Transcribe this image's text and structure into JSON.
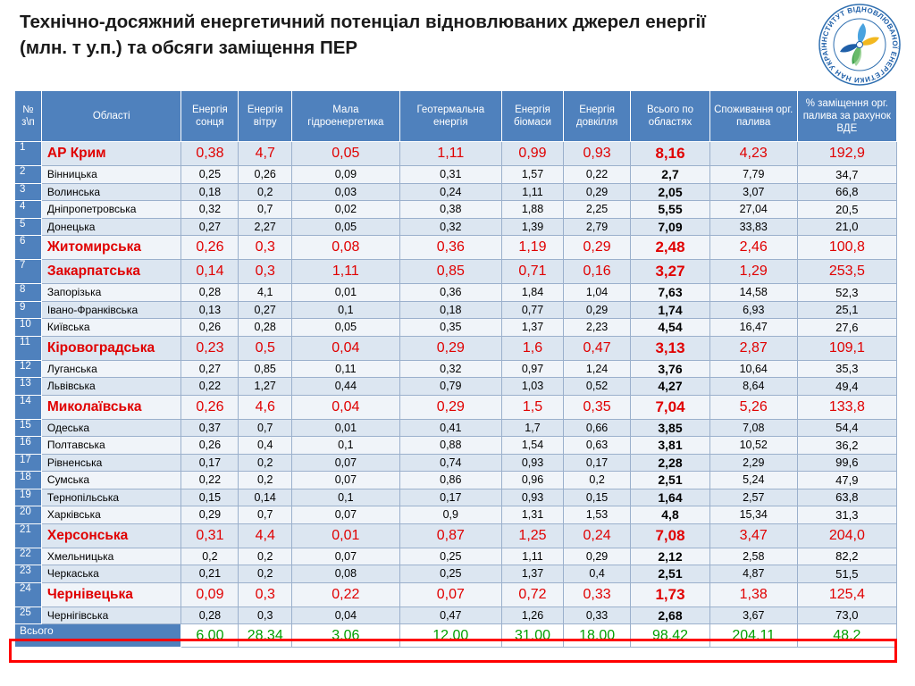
{
  "title": "Технічно-досяжний енергетичний потенціал відновлюваних джерел енергії (млн. т у.п.) та обсяги заміщення ПЕР",
  "logo": {
    "text": "ІНСТИТУТ ВІДНОВЛЮВАНОЇ ЕНЕРГЕТИКИ НАН УКРАЇНИ"
  },
  "table": {
    "headers": [
      "№ з\\п",
      "Області",
      "Енергія сонця",
      "Енергія вітру",
      "Мала гідроенергетика",
      "Геотермальна енергія",
      "Енергія біомаси",
      "Енергія довкілля",
      "Всього по областях",
      "Споживання орг. палива",
      "% заміщення орг. палива за рахунок ВДЕ"
    ],
    "rows": [
      {
        "n": "1",
        "name": "АР Крим",
        "highlight": true,
        "v": [
          "0,38",
          "4,7",
          "0,05",
          "1,11",
          "0,99",
          "0,93",
          "8,16",
          "4,23",
          "192,9"
        ]
      },
      {
        "n": "2",
        "name": "Вінницька",
        "highlight": false,
        "v": [
          "0,25",
          "0,26",
          "0,09",
          "0,31",
          "1,57",
          "0,22",
          "2,7",
          "7,79",
          "34,7"
        ]
      },
      {
        "n": "3",
        "name": "Волинська",
        "highlight": false,
        "v": [
          "0,18",
          "0,2",
          "0,03",
          "0,24",
          "1,11",
          "0,29",
          "2,05",
          "3,07",
          "66,8"
        ]
      },
      {
        "n": "4",
        "name": "Дніпропетровська",
        "highlight": false,
        "v": [
          "0,32",
          "0,7",
          "0,02",
          "0,38",
          "1,88",
          "2,25",
          "5,55",
          "27,04",
          "20,5"
        ]
      },
      {
        "n": "5",
        "name": "Донецька",
        "highlight": false,
        "v": [
          "0,27",
          "2,27",
          "0,05",
          "0,32",
          "1,39",
          "2,79",
          "7,09",
          "33,83",
          "21,0"
        ]
      },
      {
        "n": "6",
        "name": "Житомирська",
        "highlight": true,
        "v": [
          "0,26",
          "0,3",
          "0,08",
          "0,36",
          "1,19",
          "0,29",
          "2,48",
          "2,46",
          "100,8"
        ]
      },
      {
        "n": "7",
        "name": "Закарпатська",
        "highlight": true,
        "v": [
          "0,14",
          "0,3",
          "1,11",
          "0,85",
          "0,71",
          "0,16",
          "3,27",
          "1,29",
          "253,5"
        ]
      },
      {
        "n": "8",
        "name": "Запорізька",
        "highlight": false,
        "v": [
          "0,28",
          "4,1",
          "0,01",
          "0,36",
          "1,84",
          "1,04",
          "7,63",
          "14,58",
          "52,3"
        ]
      },
      {
        "n": "9",
        "name": "Івано-Франківська",
        "highlight": false,
        "v": [
          "0,13",
          "0,27",
          "0,1",
          "0,18",
          "0,77",
          "0,29",
          "1,74",
          "6,93",
          "25,1"
        ]
      },
      {
        "n": "10",
        "name": "Київська",
        "highlight": false,
        "v": [
          "0,26",
          "0,28",
          "0,05",
          "0,35",
          "1,37",
          "2,23",
          "4,54",
          "16,47",
          "27,6"
        ]
      },
      {
        "n": "11",
        "name": "Кіровоградська",
        "highlight": true,
        "v": [
          "0,23",
          "0,5",
          "0,04",
          "0,29",
          "1,6",
          "0,47",
          "3,13",
          "2,87",
          "109,1"
        ]
      },
      {
        "n": "12",
        "name": "Луганська",
        "highlight": false,
        "v": [
          "0,27",
          "0,85",
          "0,11",
          "0,32",
          "0,97",
          "1,24",
          "3,76",
          "10,64",
          "35,3"
        ]
      },
      {
        "n": "13",
        "name": "Львівська",
        "highlight": false,
        "v": [
          "0,22",
          "1,27",
          "0,44",
          "0,79",
          "1,03",
          "0,52",
          "4,27",
          "8,64",
          "49,4"
        ]
      },
      {
        "n": "14",
        "name": "Миколаївська",
        "highlight": true,
        "v": [
          "0,26",
          "4,6",
          "0,04",
          "0,29",
          "1,5",
          "0,35",
          "7,04",
          "5,26",
          "133,8"
        ]
      },
      {
        "n": "15",
        "name": "Одеська",
        "highlight": false,
        "v": [
          "0,37",
          "0,7",
          "0,01",
          "0,41",
          "1,7",
          "0,66",
          "3,85",
          "7,08",
          "54,4"
        ]
      },
      {
        "n": "16",
        "name": "Полтавська",
        "highlight": false,
        "v": [
          "0,26",
          "0,4",
          "0,1",
          "0,88",
          "1,54",
          "0,63",
          "3,81",
          "10,52",
          "36,2"
        ]
      },
      {
        "n": "17",
        "name": "Рівненська",
        "highlight": false,
        "v": [
          "0,17",
          "0,2",
          "0,07",
          "0,74",
          "0,93",
          "0,17",
          "2,28",
          "2,29",
          "99,6"
        ]
      },
      {
        "n": "18",
        "name": "Сумська",
        "highlight": false,
        "v": [
          "0,22",
          "0,2",
          "0,07",
          "0,86",
          "0,96",
          "0,2",
          "2,51",
          "5,24",
          "47,9"
        ]
      },
      {
        "n": "19",
        "name": "Тернопільська",
        "highlight": false,
        "v": [
          "0,15",
          "0,14",
          "0,1",
          "0,17",
          "0,93",
          "0,15",
          "1,64",
          "2,57",
          "63,8"
        ]
      },
      {
        "n": "20",
        "name": "Харківська",
        "highlight": false,
        "v": [
          "0,29",
          "0,7",
          "0,07",
          "0,9",
          "1,31",
          "1,53",
          "4,8",
          "15,34",
          "31,3"
        ]
      },
      {
        "n": "21",
        "name": "Херсонська",
        "highlight": true,
        "v": [
          "0,31",
          "4,4",
          "0,01",
          "0,87",
          "1,25",
          "0,24",
          "7,08",
          "3,47",
          "204,0"
        ]
      },
      {
        "n": "22",
        "name": "Хмельницька",
        "highlight": false,
        "v": [
          "0,2",
          "0,2",
          "0,07",
          "0,25",
          "1,11",
          "0,29",
          "2,12",
          "2,58",
          "82,2"
        ]
      },
      {
        "n": "23",
        "name": "Черкаська",
        "highlight": false,
        "v": [
          "0,21",
          "0,2",
          "0,08",
          "0,25",
          "1,37",
          "0,4",
          "2,51",
          "4,87",
          "51,5"
        ]
      },
      {
        "n": "24",
        "name": "Чернівецька",
        "highlight": true,
        "v": [
          "0,09",
          "0,3",
          "0,22",
          "0,07",
          "0,72",
          "0,33",
          "1,73",
          "1,38",
          "125,4"
        ]
      },
      {
        "n": "25",
        "name": "Чернігівська",
        "highlight": false,
        "v": [
          "0,28",
          "0,3",
          "0,04",
          "0,47",
          "1,26",
          "0,33",
          "2,68",
          "3,67",
          "73,0"
        ]
      }
    ],
    "total": {
      "label": "Всього",
      "v": [
        "6,00",
        "28,34",
        "3,06",
        "12,00",
        "31,00",
        "18,00",
        "98,42",
        "204,11",
        "48,2"
      ]
    }
  }
}
